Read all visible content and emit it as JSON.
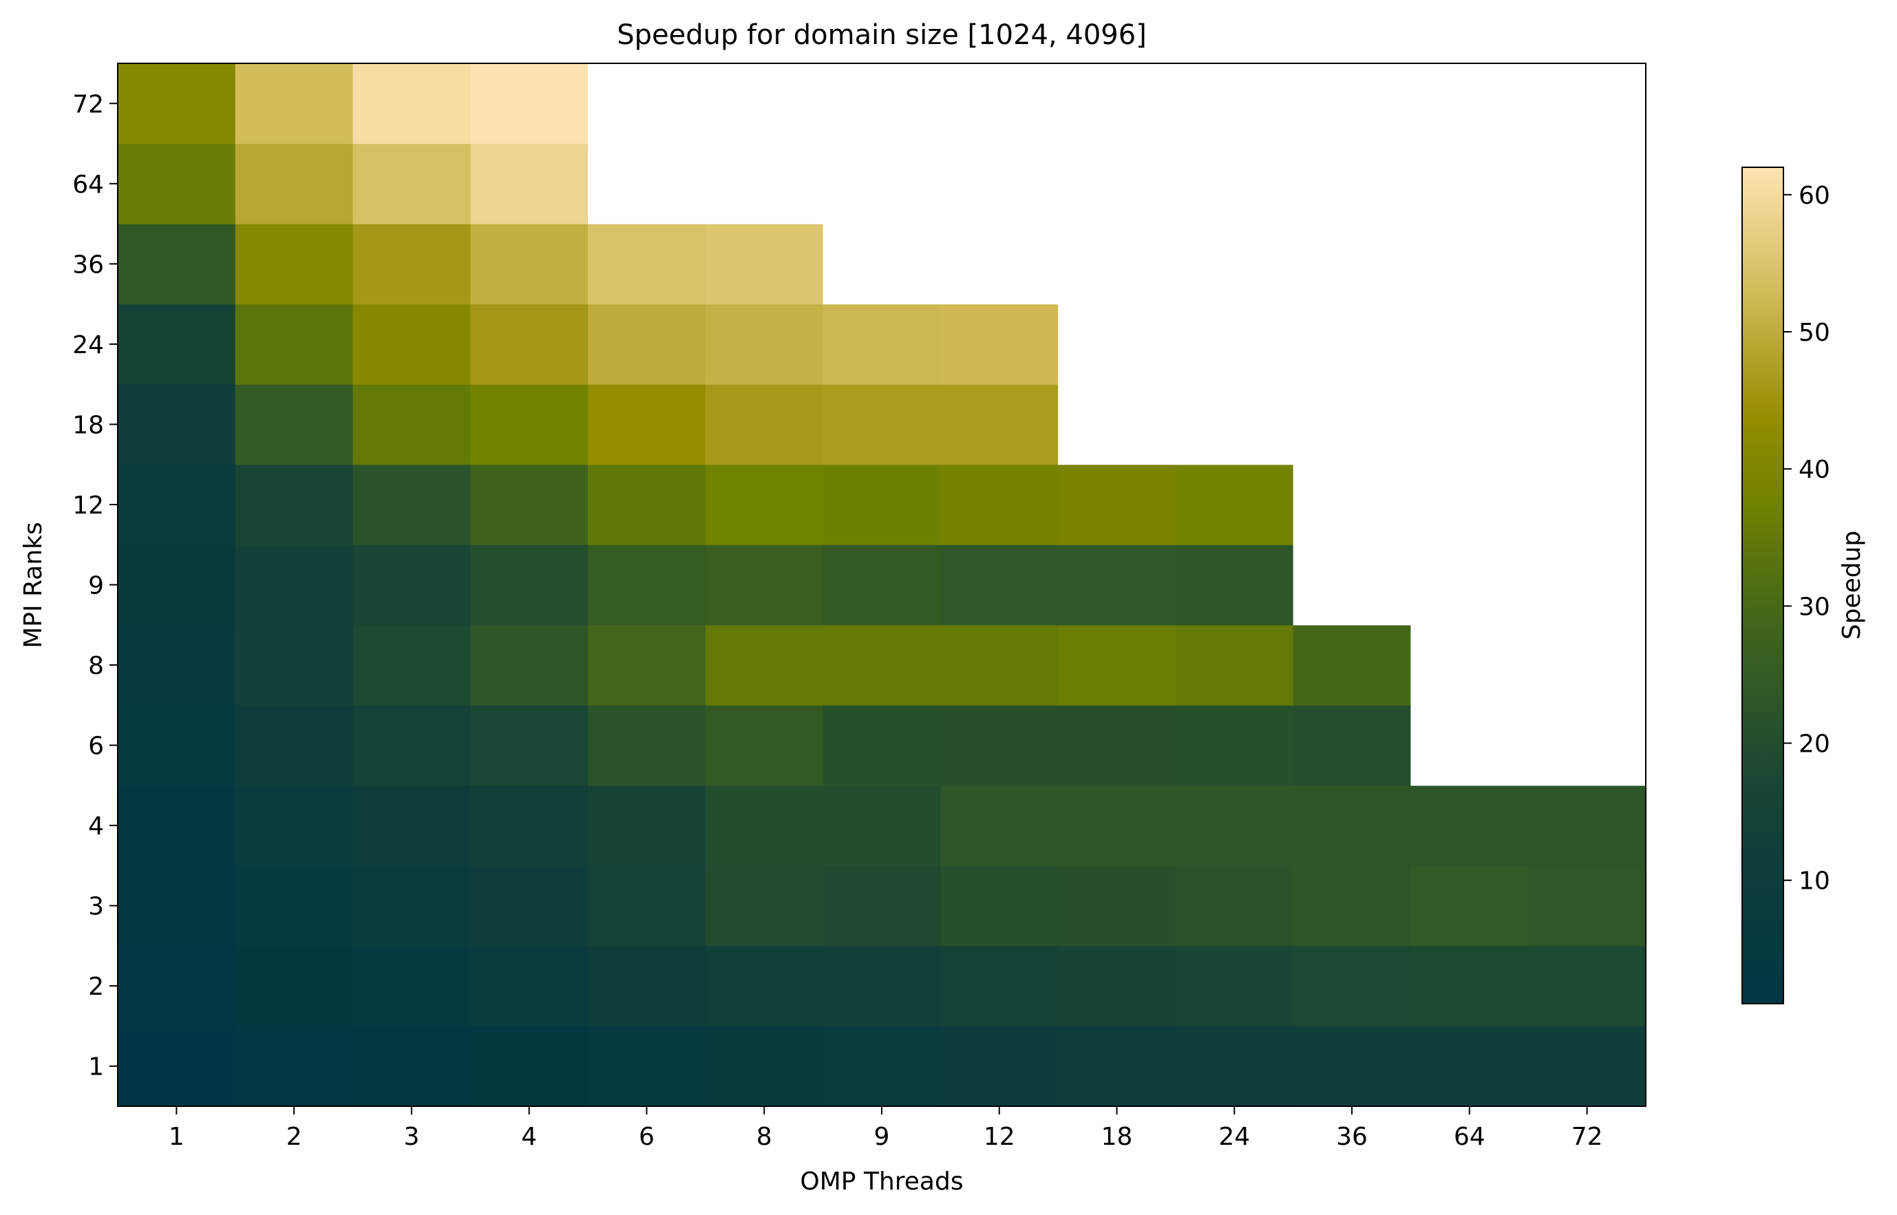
{
  "chart_data": {
    "type": "heatmap",
    "title": "Speedup for domain size [1024, 4096]",
    "xlabel": "OMP Threads",
    "ylabel": "MPI Ranks",
    "x_categories": [
      "1",
      "2",
      "3",
      "4",
      "6",
      "8",
      "9",
      "12",
      "18",
      "24",
      "36",
      "64",
      "72"
    ],
    "y_categories": [
      "1",
      "2",
      "3",
      "4",
      "6",
      "8",
      "9",
      "12",
      "18",
      "24",
      "36",
      "64",
      "72"
    ],
    "values": [
      [
        1.0,
        2.0,
        2.9,
        3.8,
        5.5,
        7.0,
        7.6,
        9.0,
        10.6,
        11.1,
        11.4,
        11.6,
        11.6
      ],
      [
        1.9,
        3.8,
        5.8,
        7.6,
        10.5,
        12.5,
        13.2,
        14.0,
        15.8,
        17.0,
        17.6,
        18.0,
        18.0
      ],
      [
        2.8,
        5.7,
        8.5,
        10.5,
        14.5,
        19.5,
        19.0,
        21.0,
        21.5,
        22.0,
        23.0,
        24.2,
        23.5
      ],
      [
        3.7,
        7.5,
        10.5,
        13.0,
        15.5,
        20.0,
        20.0,
        23.0,
        23.0,
        23.0,
        23.0,
        23.0,
        23.0
      ],
      [
        5.0,
        10.5,
        14.5,
        17.5,
        22.0,
        24.5,
        21.0,
        21.5,
        21.5,
        21.0,
        20.5,
        null,
        null
      ],
      [
        6.5,
        13.5,
        18.0,
        23.0,
        29.0,
        35.0,
        35.5,
        35.5,
        36.5,
        35.0,
        29.5,
        null,
        null
      ],
      [
        7.0,
        13.5,
        17.0,
        20.5,
        25.5,
        26.5,
        24.5,
        23.5,
        23.5,
        23.0,
        null,
        null,
        null
      ],
      [
        8.5,
        17.0,
        22.0,
        28.0,
        34.5,
        37.5,
        37.0,
        38.5,
        39.0,
        38.0,
        null,
        null,
        null
      ],
      [
        11.0,
        25.0,
        35.0,
        38.0,
        43.5,
        46.5,
        47.0,
        47.0,
        null,
        null,
        null,
        null,
        null
      ],
      [
        15.0,
        34.0,
        41.5,
        46.0,
        50.0,
        51.0,
        52.0,
        52.5,
        null,
        null,
        null,
        null,
        null
      ],
      [
        24.0,
        41.0,
        46.0,
        50.5,
        54.5,
        55.0,
        null,
        null,
        null,
        null,
        null,
        null,
        null
      ],
      [
        36.0,
        49.0,
        54.0,
        58.5,
        null,
        null,
        null,
        null,
        null,
        null,
        null,
        null,
        null
      ],
      [
        41.0,
        53.0,
        60.5,
        61.5,
        null,
        null,
        null,
        null,
        null,
        null,
        null,
        null,
        null
      ]
    ],
    "missing_color": "#ffffff",
    "colormap": [
      {
        "v": 0.0,
        "color": "#003544"
      },
      {
        "v": 0.25,
        "color": "#174336"
      },
      {
        "v": 0.45,
        "color": "#3f641c"
      },
      {
        "v": 0.6,
        "color": "#718200"
      },
      {
        "v": 0.7,
        "color": "#948c00"
      },
      {
        "v": 0.85,
        "color": "#d2bb58"
      },
      {
        "v": 1.0,
        "color": "#fde4b3"
      }
    ],
    "colorbar": {
      "label": "Speedup",
      "vmin": 1.0,
      "vmax": 62.0,
      "ticks": [
        10,
        20,
        30,
        40,
        50,
        60
      ]
    }
  }
}
